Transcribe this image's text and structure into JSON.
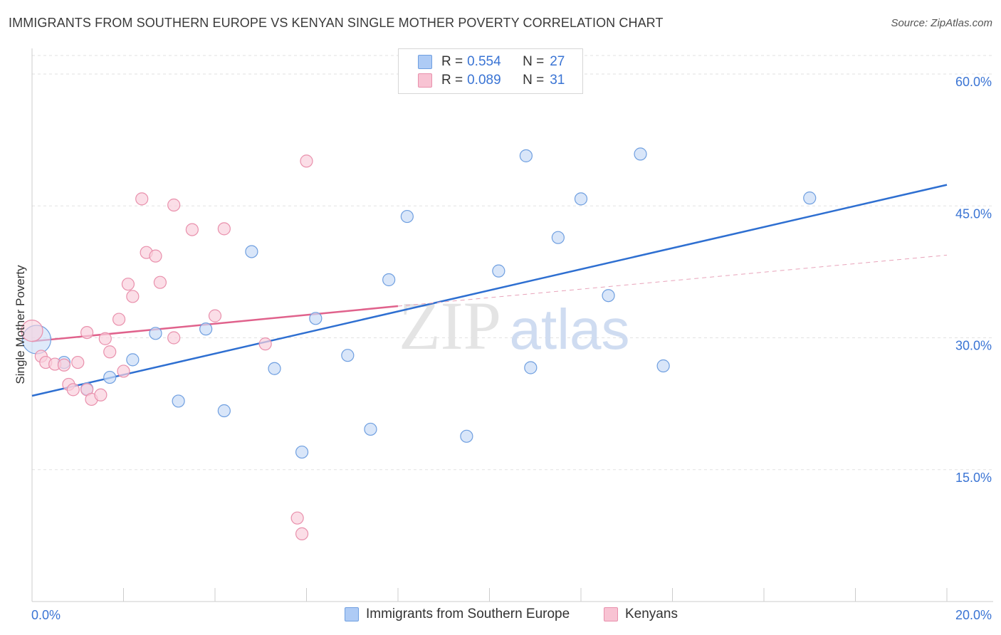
{
  "title": "IMMIGRANTS FROM SOUTHERN EUROPE VS KENYAN SINGLE MOTHER POVERTY CORRELATION CHART",
  "source": "Source: ZipAtlas.com",
  "watermark": {
    "zip": "ZIP",
    "atlas": "atlas"
  },
  "legend": {
    "rows": [
      {
        "r_label": "R =",
        "r_value": "0.554",
        "n_label": "N =",
        "n_value": "27",
        "color": "#aecbf5",
        "border": "#6f9fe0"
      },
      {
        "r_label": "R =",
        "r_value": "0.089",
        "n_label": "N =",
        "n_value": "31",
        "color": "#f8c3d3",
        "border": "#e990ac"
      }
    ]
  },
  "bottom_legend": {
    "blue": "Immigrants from Southern Europe",
    "pink": "Kenyans"
  },
  "chart_data": {
    "type": "scatter",
    "title": "IMMIGRANTS FROM SOUTHERN EUROPE VS KENYAN SINGLE MOTHER POVERTY CORRELATION CHART",
    "xlabel": "",
    "ylabel": "Single Mother Poverty",
    "xlim": [
      0,
      20
    ],
    "ylim": [
      0,
      60
    ],
    "x_ticks": [
      "0.0%",
      "20.0%"
    ],
    "y_ticks": [
      {
        "value": 15,
        "label": "15.0%"
      },
      {
        "value": 30,
        "label": "30.0%"
      },
      {
        "value": 45,
        "label": "45.0%"
      },
      {
        "value": 60,
        "label": "60.0%"
      }
    ],
    "grid": true,
    "legend_position": "top-center",
    "series": [
      {
        "name": "Immigrants from Southern Europe",
        "color": "#6f9fe0",
        "fill": "#c9dcf7",
        "points": [
          [
            0.1,
            29.8
          ],
          [
            0.7,
            27.2
          ],
          [
            1.2,
            24.2
          ],
          [
            1.7,
            25.5
          ],
          [
            2.2,
            27.5
          ],
          [
            2.7,
            30.5
          ],
          [
            3.2,
            22.8
          ],
          [
            3.8,
            31.0
          ],
          [
            4.2,
            21.7
          ],
          [
            4.8,
            39.8
          ],
          [
            5.3,
            26.5
          ],
          [
            5.9,
            17.0
          ],
          [
            6.2,
            32.2
          ],
          [
            6.9,
            28.0
          ],
          [
            7.4,
            19.6
          ],
          [
            7.8,
            36.6
          ],
          [
            8.2,
            43.8
          ],
          [
            9.5,
            18.8
          ],
          [
            10.2,
            37.6
          ],
          [
            10.8,
            50.7
          ],
          [
            10.9,
            26.6
          ],
          [
            11.5,
            41.4
          ],
          [
            12.0,
            45.8
          ],
          [
            12.6,
            34.8
          ],
          [
            13.3,
            50.9
          ],
          [
            13.8,
            26.8
          ],
          [
            17.0,
            45.9
          ]
        ],
        "trend": {
          "x": [
            0,
            20
          ],
          "y": [
            23.4,
            47.4
          ],
          "color": "#2e6fd1"
        }
      },
      {
        "name": "Kenyans",
        "color": "#e990ac",
        "fill": "#f9d0dd",
        "points": [
          [
            0.0,
            30.8
          ],
          [
            0.2,
            27.9
          ],
          [
            0.3,
            27.2
          ],
          [
            0.5,
            27.0
          ],
          [
            0.7,
            26.9
          ],
          [
            0.8,
            24.7
          ],
          [
            0.9,
            24.1
          ],
          [
            1.2,
            24.1
          ],
          [
            1.2,
            30.6
          ],
          [
            1.3,
            23.0
          ],
          [
            1.5,
            23.5
          ],
          [
            1.6,
            29.9
          ],
          [
            1.7,
            28.4
          ],
          [
            1.9,
            32.1
          ],
          [
            2.0,
            26.2
          ],
          [
            2.1,
            36.1
          ],
          [
            2.2,
            34.7
          ],
          [
            2.4,
            45.8
          ],
          [
            2.5,
            39.7
          ],
          [
            2.7,
            39.3
          ],
          [
            2.8,
            36.3
          ],
          [
            3.1,
            45.1
          ],
          [
            3.1,
            30.0
          ],
          [
            3.5,
            42.3
          ],
          [
            4.0,
            32.5
          ],
          [
            4.2,
            42.4
          ],
          [
            5.1,
            29.3
          ],
          [
            5.8,
            9.5
          ],
          [
            5.9,
            7.7
          ],
          [
            6.0,
            50.1
          ],
          [
            1.0,
            27.2
          ]
        ],
        "trend": {
          "x": [
            0,
            8.0
          ],
          "y": [
            29.6,
            33.6
          ],
          "color": "#e0628c"
        },
        "trend_extension": {
          "x": [
            8.0,
            20
          ],
          "y": [
            33.6,
            39.4
          ],
          "dashed": true
        }
      }
    ]
  }
}
